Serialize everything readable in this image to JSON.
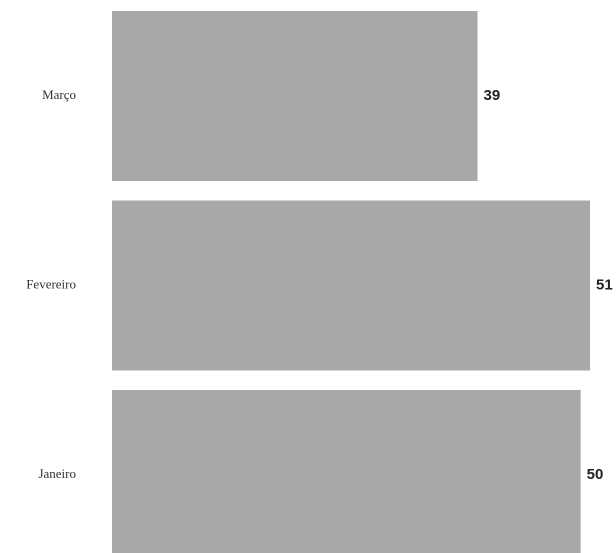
{
  "chart_data": {
    "type": "bar",
    "orientation": "horizontal",
    "categories": [
      "Março",
      "Fevereiro",
      "Janeiro"
    ],
    "values": [
      39,
      51,
      50
    ],
    "title": "",
    "xlabel": "",
    "ylabel": "",
    "xlim": [
      0,
      51
    ],
    "grid": false,
    "legend": "none",
    "bar_color": "#a8a8a8",
    "data_labels": [
      "39",
      "51",
      "50"
    ]
  }
}
